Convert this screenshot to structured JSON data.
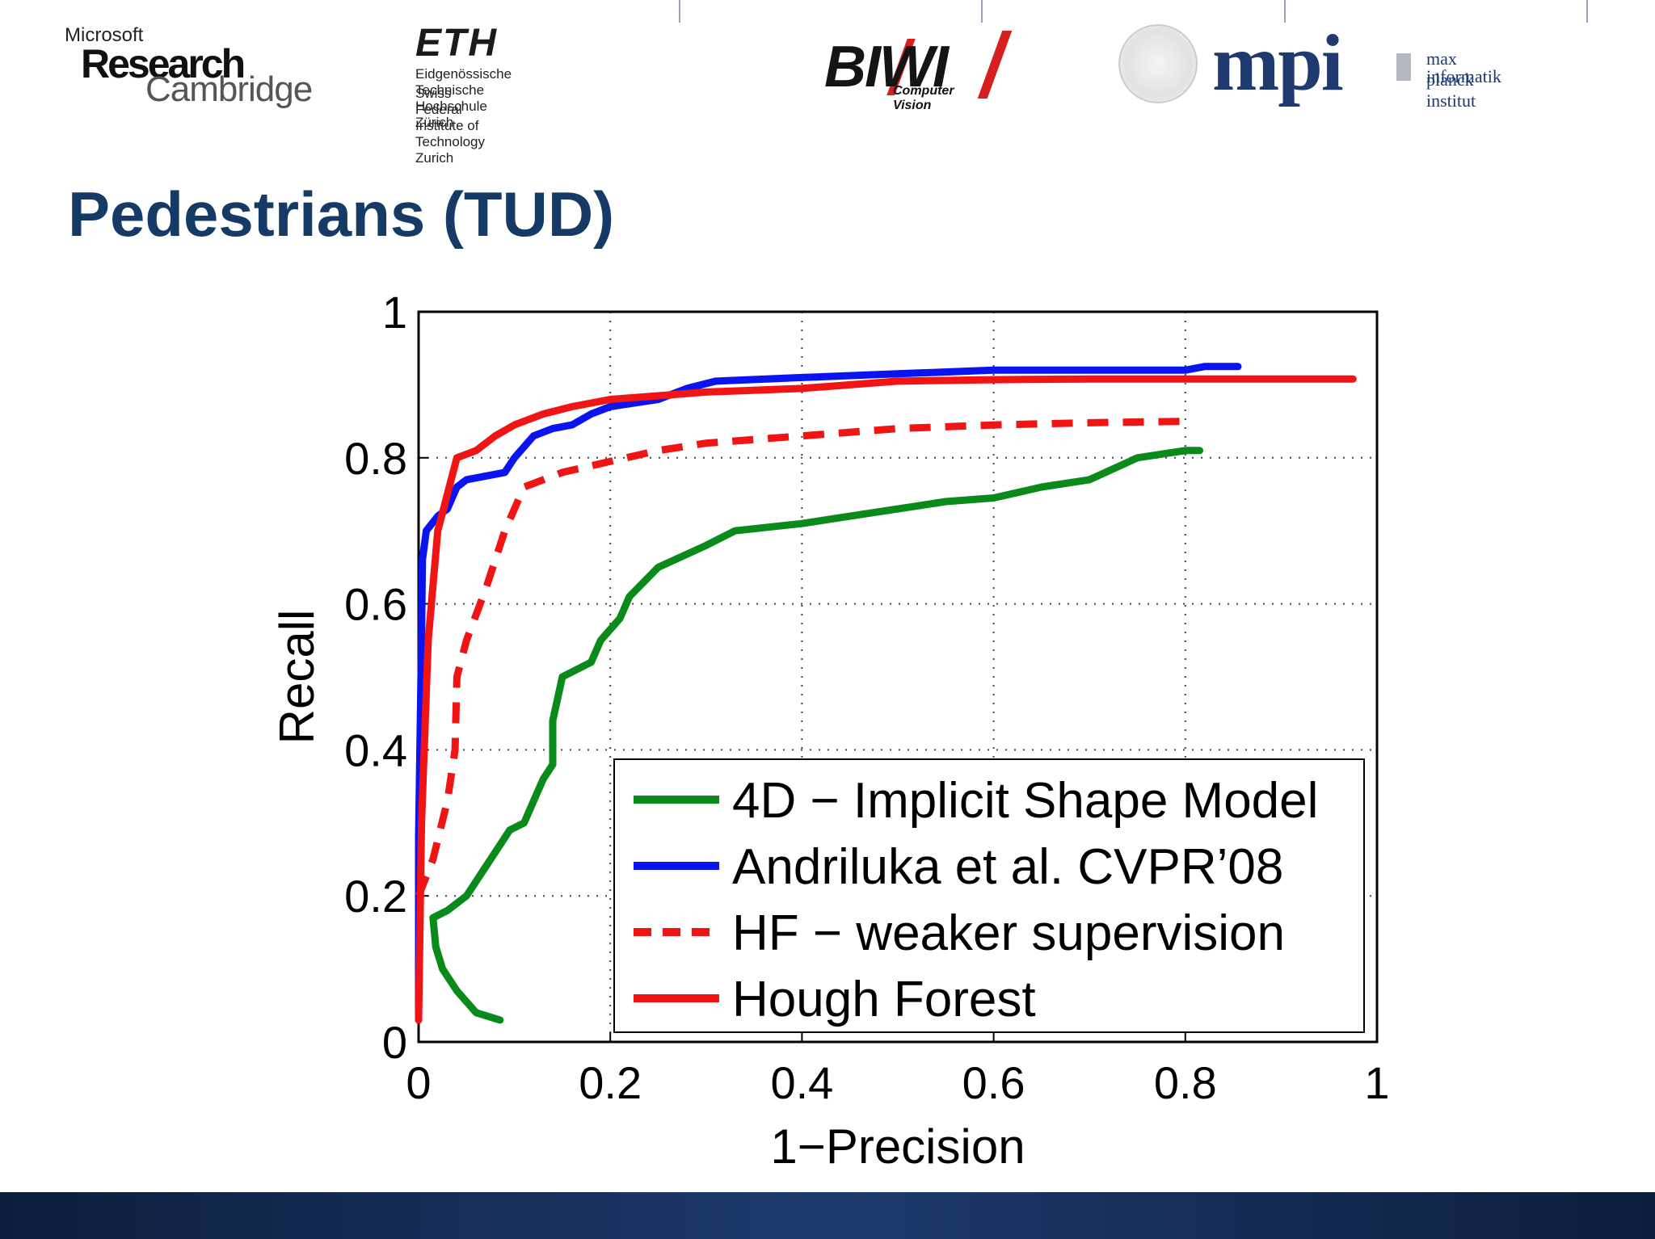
{
  "header": {
    "microsoft_small": "Microsoft",
    "microsoft_research": "Research",
    "microsoft_cambridge": "Cambridge",
    "eth_big": "ETH",
    "eth_line1": "Eidgenössische Technische Hochschule Zürich",
    "eth_line2": "Swiss Federal Institute of Technology Zurich",
    "biwi_big": "BIWI",
    "biwi_sub": "Computer Vision",
    "mpi_letters": "mpi",
    "mpi_line1": "max planck institut",
    "mpi_line2": "informatik"
  },
  "slide": {
    "title": "Pedestrians (TUD)"
  },
  "colors": {
    "title": "#163a66",
    "green": "#0a8a1a",
    "blue": "#0a14f0",
    "red": "#f01414",
    "footer": "#1d3a6e"
  },
  "chart_data": {
    "type": "line",
    "xlabel": "1−Precision",
    "ylabel": "Recall",
    "xlim": [
      0,
      1
    ],
    "ylim": [
      0,
      1
    ],
    "x_ticks": [
      "0",
      "0.2",
      "0.4",
      "0.6",
      "0.8",
      "1"
    ],
    "y_ticks": [
      "0",
      "0.2",
      "0.4",
      "0.6",
      "0.8",
      "1"
    ],
    "grid": true,
    "legend_position": "bottom-right",
    "series": [
      {
        "name": "4D − Implicit Shape Model",
        "color": "#0a8a1a",
        "dash": "solid",
        "points": [
          [
            0.085,
            0.03
          ],
          [
            0.06,
            0.04
          ],
          [
            0.04,
            0.07
          ],
          [
            0.025,
            0.1
          ],
          [
            0.018,
            0.13
          ],
          [
            0.015,
            0.17
          ],
          [
            0.03,
            0.18
          ],
          [
            0.05,
            0.2
          ],
          [
            0.065,
            0.23
          ],
          [
            0.08,
            0.26
          ],
          [
            0.095,
            0.29
          ],
          [
            0.11,
            0.3
          ],
          [
            0.12,
            0.33
          ],
          [
            0.13,
            0.36
          ],
          [
            0.14,
            0.38
          ],
          [
            0.14,
            0.44
          ],
          [
            0.15,
            0.5
          ],
          [
            0.18,
            0.52
          ],
          [
            0.19,
            0.55
          ],
          [
            0.21,
            0.58
          ],
          [
            0.22,
            0.61
          ],
          [
            0.25,
            0.65
          ],
          [
            0.3,
            0.68
          ],
          [
            0.33,
            0.7
          ],
          [
            0.4,
            0.71
          ],
          [
            0.45,
            0.72
          ],
          [
            0.5,
            0.73
          ],
          [
            0.55,
            0.74
          ],
          [
            0.6,
            0.745
          ],
          [
            0.65,
            0.76
          ],
          [
            0.7,
            0.77
          ],
          [
            0.75,
            0.8
          ],
          [
            0.8,
            0.81
          ],
          [
            0.815,
            0.81
          ]
        ]
      },
      {
        "name": "Andriluka et al. CVPR’08",
        "color": "#0a14f0",
        "dash": "solid",
        "points": [
          [
            0.0,
            0.03
          ],
          [
            0.0,
            0.28
          ],
          [
            0.003,
            0.55
          ],
          [
            0.004,
            0.66
          ],
          [
            0.008,
            0.7
          ],
          [
            0.02,
            0.72
          ],
          [
            0.03,
            0.73
          ],
          [
            0.04,
            0.76
          ],
          [
            0.05,
            0.77
          ],
          [
            0.07,
            0.775
          ],
          [
            0.09,
            0.78
          ],
          [
            0.1,
            0.8
          ],
          [
            0.12,
            0.83
          ],
          [
            0.14,
            0.84
          ],
          [
            0.16,
            0.845
          ],
          [
            0.18,
            0.86
          ],
          [
            0.2,
            0.87
          ],
          [
            0.25,
            0.88
          ],
          [
            0.28,
            0.895
          ],
          [
            0.31,
            0.905
          ],
          [
            0.4,
            0.91
          ],
          [
            0.5,
            0.915
          ],
          [
            0.6,
            0.92
          ],
          [
            0.7,
            0.92
          ],
          [
            0.8,
            0.92
          ],
          [
            0.82,
            0.925
          ],
          [
            0.855,
            0.925
          ]
        ]
      },
      {
        "name": "HF − weaker supervision",
        "color": "#f01414",
        "dash": "dashed",
        "points": [
          [
            0.0,
            0.2
          ],
          [
            0.015,
            0.25
          ],
          [
            0.03,
            0.33
          ],
          [
            0.038,
            0.4
          ],
          [
            0.04,
            0.5
          ],
          [
            0.05,
            0.55
          ],
          [
            0.07,
            0.62
          ],
          [
            0.09,
            0.7
          ],
          [
            0.11,
            0.76
          ],
          [
            0.15,
            0.78
          ],
          [
            0.2,
            0.795
          ],
          [
            0.25,
            0.81
          ],
          [
            0.3,
            0.82
          ],
          [
            0.4,
            0.83
          ],
          [
            0.5,
            0.84
          ],
          [
            0.6,
            0.845
          ],
          [
            0.7,
            0.848
          ],
          [
            0.8,
            0.85
          ]
        ]
      },
      {
        "name": "Hough Forest",
        "color": "#f01414",
        "dash": "solid",
        "points": [
          [
            0.0,
            0.03
          ],
          [
            0.003,
            0.3
          ],
          [
            0.01,
            0.55
          ],
          [
            0.02,
            0.7
          ],
          [
            0.04,
            0.8
          ],
          [
            0.06,
            0.81
          ],
          [
            0.08,
            0.83
          ],
          [
            0.1,
            0.845
          ],
          [
            0.13,
            0.86
          ],
          [
            0.16,
            0.87
          ],
          [
            0.2,
            0.88
          ],
          [
            0.25,
            0.885
          ],
          [
            0.3,
            0.89
          ],
          [
            0.4,
            0.895
          ],
          [
            0.5,
            0.905
          ],
          [
            0.6,
            0.907
          ],
          [
            0.7,
            0.908
          ],
          [
            0.8,
            0.908
          ],
          [
            0.9,
            0.908
          ],
          [
            0.975,
            0.908
          ]
        ]
      }
    ]
  }
}
